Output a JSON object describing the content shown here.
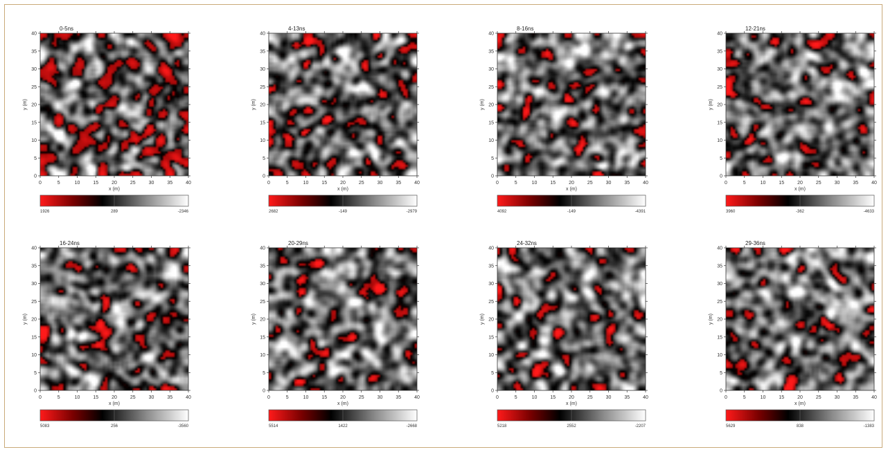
{
  "chart_data": {
    "type": "heatmap",
    "colormap": [
      "#ff1a1a",
      "#7a0000",
      "#000000",
      "#8c8c8c",
      "#ffffff"
    ],
    "panels": [
      {
        "title": "0-5ns",
        "xlabel": "x (m)",
        "ylabel": "y (m)",
        "xlim": [
          0,
          40
        ],
        "ylim": [
          0,
          40
        ],
        "x_ticks": [
          0,
          5,
          10,
          15,
          20,
          25,
          30,
          35,
          40
        ],
        "y_ticks": [
          0,
          5,
          10,
          15,
          20,
          25,
          30,
          35,
          40
        ],
        "colorbar_labels": [
          "1926",
          "289",
          "-2346"
        ],
        "hot_fraction": 0.2,
        "seed": 11
      },
      {
        "title": "4-13ns",
        "xlabel": "x (m)",
        "ylabel": "y (m)",
        "xlim": [
          0,
          40
        ],
        "ylim": [
          0,
          40
        ],
        "x_ticks": [
          0,
          5,
          10,
          15,
          20,
          25,
          30,
          35,
          40
        ],
        "y_ticks": [
          0,
          5,
          10,
          15,
          20,
          25,
          30,
          35,
          40
        ],
        "colorbar_labels": [
          "2682",
          "-149",
          "-2979"
        ],
        "hot_fraction": 0.09,
        "seed": 23
      },
      {
        "title": "8-16ns",
        "xlabel": "x (m)",
        "ylabel": "y (m)",
        "xlim": [
          0,
          40
        ],
        "ylim": [
          0,
          40
        ],
        "x_ticks": [
          0,
          5,
          10,
          15,
          20,
          25,
          30,
          35,
          40
        ],
        "y_ticks": [
          0,
          5,
          10,
          15,
          20,
          25,
          30,
          35,
          40
        ],
        "colorbar_labels": [
          "4092",
          "-149",
          "-4391"
        ],
        "hot_fraction": 0.07,
        "seed": 37
      },
      {
        "title": "12-21ns",
        "xlabel": "x (m)",
        "ylabel": "y (m)",
        "xlim": [
          0,
          40
        ],
        "ylim": [
          0,
          40
        ],
        "x_ticks": [
          0,
          5,
          10,
          15,
          20,
          25,
          30,
          35,
          40
        ],
        "y_ticks": [
          0,
          5,
          10,
          15,
          20,
          25,
          30,
          35,
          40
        ],
        "colorbar_labels": [
          "3960",
          "-362",
          "-4633"
        ],
        "hot_fraction": 0.07,
        "seed": 41
      },
      {
        "title": "16-24ns",
        "xlabel": "x (m)",
        "ylabel": "y (m)",
        "xlim": [
          0,
          40
        ],
        "ylim": [
          0,
          40
        ],
        "x_ticks": [
          0,
          5,
          10,
          15,
          20,
          25,
          30,
          35,
          40
        ],
        "y_ticks": [
          0,
          5,
          10,
          15,
          20,
          25,
          30,
          35,
          40
        ],
        "colorbar_labels": [
          "5083",
          "256",
          "-3560"
        ],
        "hot_fraction": 0.08,
        "seed": 53
      },
      {
        "title": "20-29ns",
        "xlabel": "x (m)",
        "ylabel": "y (m)",
        "xlim": [
          0,
          40
        ],
        "ylim": [
          0,
          40
        ],
        "x_ticks": [
          0,
          5,
          10,
          15,
          20,
          25,
          30,
          35,
          40
        ],
        "y_ticks": [
          0,
          5,
          10,
          15,
          20,
          25,
          30,
          35,
          40
        ],
        "colorbar_labels": [
          "5514",
          "1422",
          "-2668"
        ],
        "hot_fraction": 0.07,
        "seed": 67
      },
      {
        "title": "24-32ns",
        "xlabel": "x (m)",
        "ylabel": "y (m)",
        "xlim": [
          0,
          40
        ],
        "ylim": [
          0,
          40
        ],
        "x_ticks": [
          0,
          5,
          10,
          15,
          20,
          25,
          30,
          35,
          40
        ],
        "y_ticks": [
          0,
          5,
          10,
          15,
          20,
          25,
          30,
          35,
          40
        ],
        "colorbar_labels": [
          "5218",
          "2552",
          "-2207"
        ],
        "hot_fraction": 0.07,
        "seed": 79
      },
      {
        "title": "29-36ns",
        "xlabel": "x (m)",
        "ylabel": "y (m)",
        "xlim": [
          0,
          40
        ],
        "ylim": [
          0,
          40
        ],
        "x_ticks": [
          0,
          5,
          10,
          15,
          20,
          25,
          30,
          35,
          40
        ],
        "y_ticks": [
          0,
          5,
          10,
          15,
          20,
          25,
          30,
          35,
          40
        ],
        "colorbar_labels": [
          "5629",
          "838",
          "-1383"
        ],
        "hot_fraction": 0.07,
        "seed": 97
      }
    ]
  }
}
